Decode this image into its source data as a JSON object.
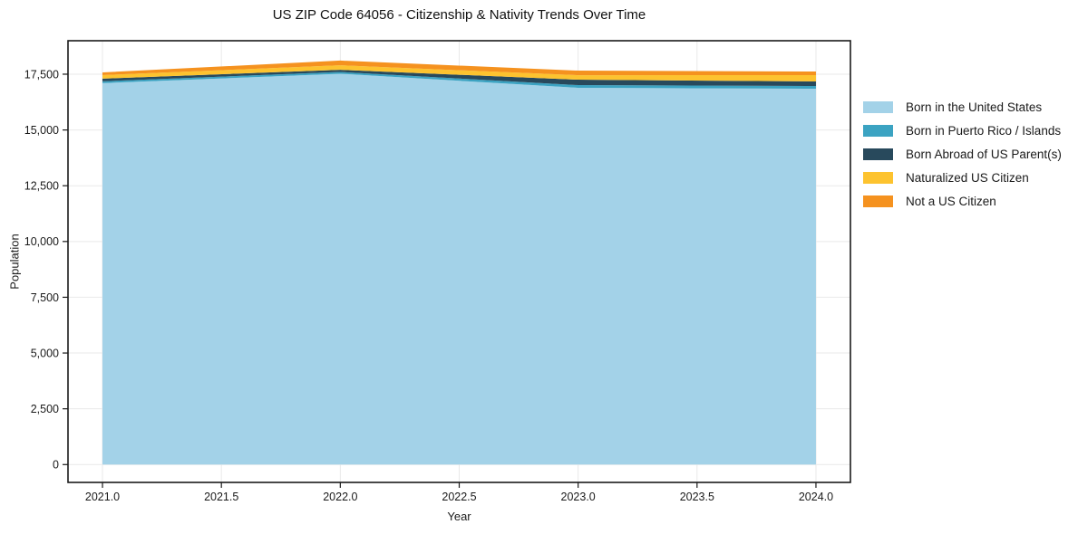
{
  "title": "US ZIP Code 64056 - Citizenship & Nativity Trends Over Time",
  "chart_data": {
    "type": "area",
    "stacked": true,
    "title": "US ZIP Code 64056 - Citizenship & Nativity Trends Over Time",
    "xlabel": "Year",
    "ylabel": "Population",
    "x": [
      2021,
      2022,
      2023,
      2024
    ],
    "series": [
      {
        "name": "Born in the United States",
        "color": "#A3D2E8",
        "values": [
          17100,
          17520,
          16890,
          16850
        ]
      },
      {
        "name": "Born in Puerto Rico / Islands",
        "color": "#3BA3C2",
        "values": [
          80,
          80,
          120,
          120
        ]
      },
      {
        "name": "Born Abroad of US Parent(s)",
        "color": "#28495C",
        "values": [
          120,
          95,
          245,
          205
        ]
      },
      {
        "name": "Naturalized US Citizen",
        "color": "#FDC32F",
        "values": [
          160,
          205,
          200,
          285
        ]
      },
      {
        "name": "Not a US Citizen",
        "color": "#F5921F",
        "values": [
          120,
          210,
          205,
          160
        ]
      }
    ],
    "totals": [
      17580,
      18110,
      17660,
      17620
    ],
    "xlim": [
      2020.855,
      2024.145
    ],
    "ylim": [
      -800,
      19000
    ],
    "xticks": {
      "values": [
        2021,
        2021.5,
        2022,
        2022.5,
        2023,
        2023.5,
        2024
      ],
      "labels": [
        "2021.0",
        "2021.5",
        "2022.0",
        "2022.5",
        "2023.0",
        "2023.5",
        "2024.0"
      ]
    },
    "yticks": {
      "values": [
        0,
        2500,
        5000,
        7500,
        10000,
        12500,
        15000,
        17500
      ],
      "labels": [
        "0",
        "2,500",
        "5,000",
        "7,500",
        "10,000",
        "12,500",
        "15,000",
        "17,500"
      ]
    },
    "grid": true,
    "legend_position": "right-outside"
  },
  "colors": {
    "grid": "#e9e9e9",
    "spine": "#1a1a1a",
    "tick_text": "#1a1a1a",
    "background": "#ffffff"
  }
}
